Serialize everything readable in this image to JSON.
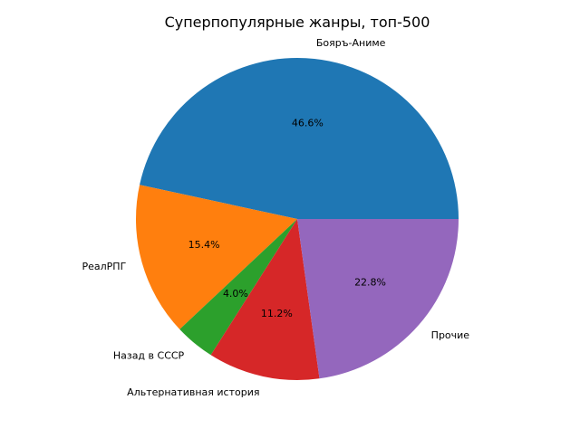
{
  "chart_data": {
    "type": "pie",
    "title": "Суперпопулярные жанры, топ-500",
    "start_angle_deg": 0,
    "direction": "counterclockwise",
    "slices": [
      {
        "label": "Бояръ-Аниме",
        "value": 46.6,
        "pct_label": "46.6%",
        "color": "#1f77b4"
      },
      {
        "label": "РеалРПГ",
        "value": 15.4,
        "pct_label": "15.4%",
        "color": "#ff7f0e"
      },
      {
        "label": "Назад в СССР",
        "value": 4.0,
        "pct_label": "4.0%",
        "color": "#2ca02c"
      },
      {
        "label": "Альтернативная история",
        "value": 11.2,
        "pct_label": "11.2%",
        "color": "#d62728"
      },
      {
        "label": "Прочие",
        "value": 22.8,
        "pct_label": "22.8%",
        "color": "#9467bd"
      }
    ]
  }
}
